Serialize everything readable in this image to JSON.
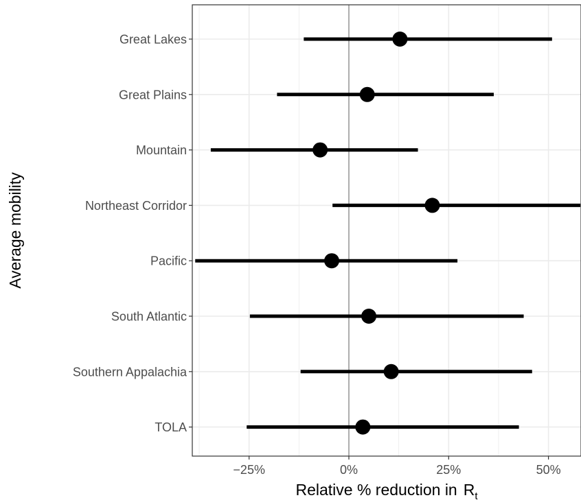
{
  "chart_data": {
    "type": "forest",
    "ylabel": "Average mobility",
    "xlabel": "Relative % reduction in",
    "xlabel_math": {
      "base": "R",
      "subscript": "t"
    },
    "xlim": [
      -39,
      58
    ],
    "x_ticks": [
      -25,
      0,
      25,
      50
    ],
    "x_tick_labels": [
      "−25%",
      "0%",
      "25%",
      "50%"
    ],
    "reference_line": 0,
    "grid": true,
    "categories": [
      "Great Lakes",
      "Great Plains",
      "Mountain",
      "Northeast Corridor",
      "Pacific",
      "South Atlantic",
      "Southern Appalachia",
      "TOLA"
    ],
    "estimates": [
      12.8,
      4.6,
      -7.2,
      20.9,
      -4.3,
      5.0,
      10.6,
      3.5
    ],
    "lower": [
      -11.3,
      -18.0,
      -34.6,
      -4.1,
      -38.5,
      -24.8,
      -12.1,
      -25.6
    ],
    "upper": [
      50.9,
      36.3,
      17.3,
      58.0,
      27.2,
      43.8,
      45.9,
      42.6
    ],
    "colors": {
      "mark": "#000000",
      "grid": "#ebebeb",
      "reference": "#a6a6a6",
      "panel_border": "#333333"
    }
  }
}
